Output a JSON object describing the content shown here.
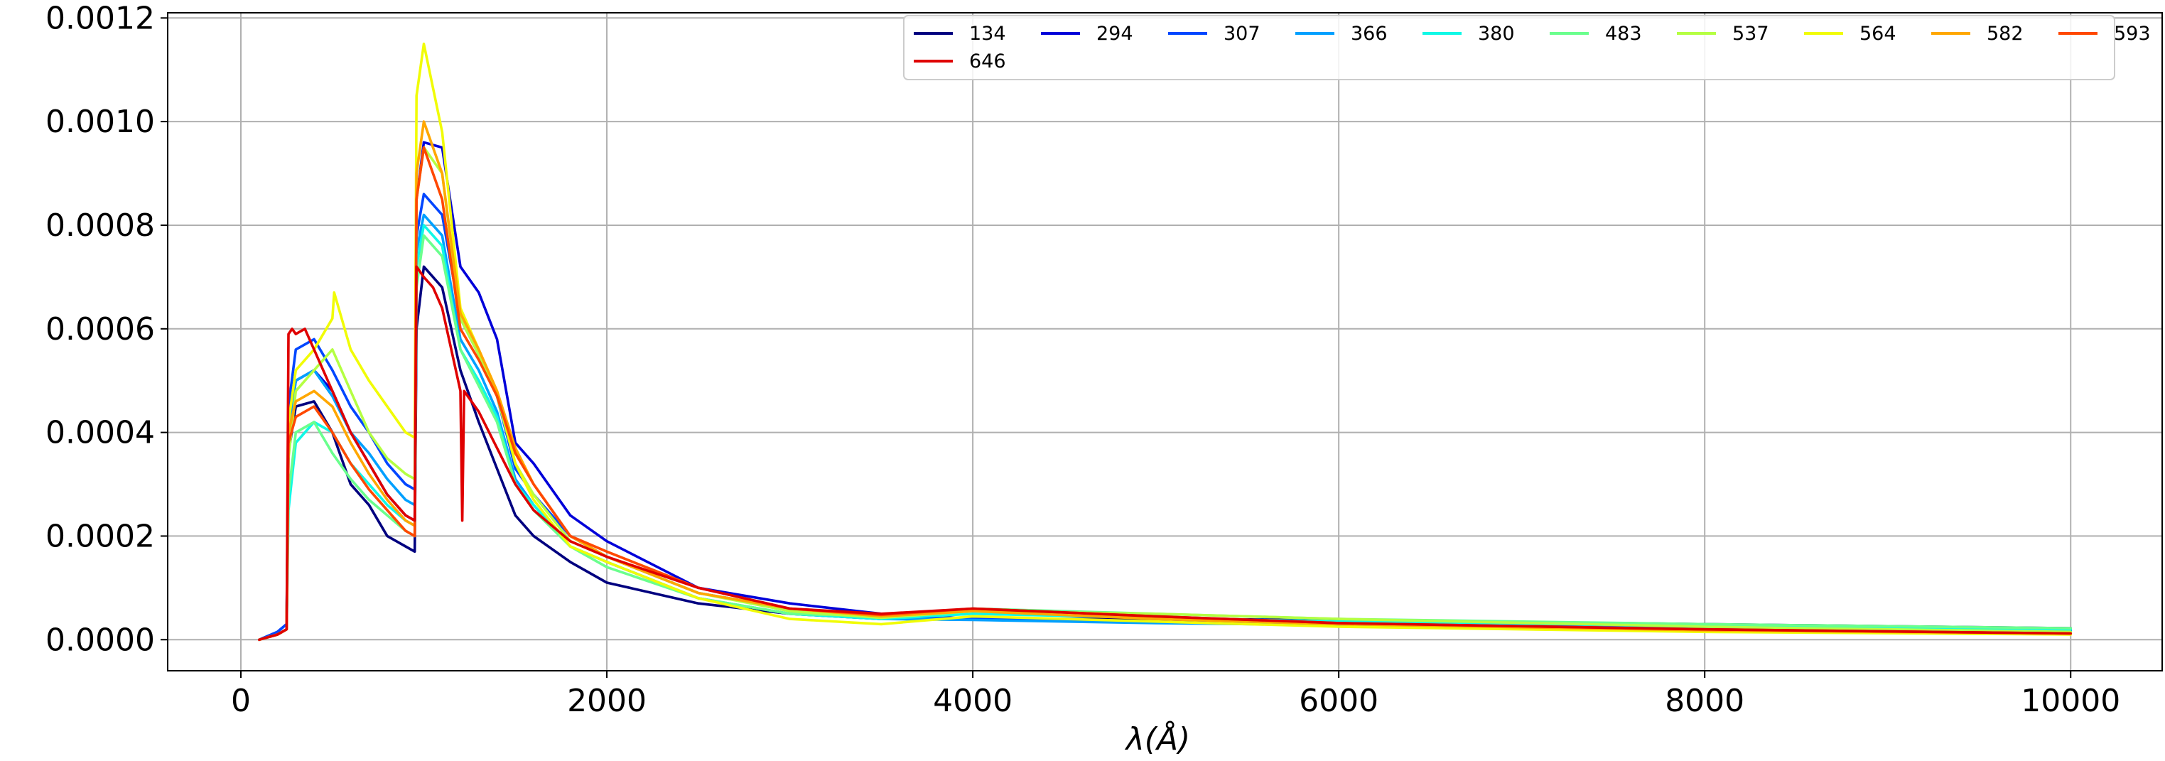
{
  "chart_data": {
    "type": "line",
    "title": "",
    "xlabel": "λ(Å)",
    "ylabel": "",
    "xlim": [
      -400,
      10500
    ],
    "ylim": [
      -6e-05,
      0.00121
    ],
    "x_ticks": [
      0,
      2000,
      4000,
      6000,
      8000,
      10000
    ],
    "x_tick_labels": [
      "0",
      "2000",
      "4000",
      "6000",
      "8000",
      "10000"
    ],
    "y_ticks": [
      0.0,
      0.0002,
      0.0004,
      0.0006,
      0.0008,
      0.001,
      0.0012
    ],
    "y_tick_labels": [
      "0.0000",
      "0.0002",
      "0.0004",
      "0.0006",
      "0.0008",
      "0.0010",
      "0.0012"
    ],
    "grid": true,
    "legend": {
      "placement": "top-right",
      "columns": 10
    },
    "series": [
      {
        "name": "134",
        "color": "#00007f",
        "x": [
          100,
          200,
          250,
          260,
          300,
          400,
          500,
          600,
          700,
          800,
          900,
          950,
          960,
          1000,
          1100,
          1200,
          1300,
          1400,
          1500,
          1600,
          1800,
          2000,
          2500,
          3000,
          3500,
          4000,
          5000,
          6000,
          8000,
          10000
        ],
        "y": [
          0,
          1e-05,
          2e-05,
          0.00036,
          0.00045,
          0.00046,
          0.0004,
          0.0003,
          0.00026,
          0.0002,
          0.00018,
          0.00017,
          0.0006,
          0.00072,
          0.00068,
          0.00052,
          0.00042,
          0.00033,
          0.00024,
          0.0002,
          0.00015,
          0.00011,
          7e-05,
          5e-05,
          4e-05,
          4e-05,
          4e-05,
          3.8e-05,
          3e-05,
          2.2e-05
        ]
      },
      {
        "name": "294",
        "color": "#0000d9",
        "x": [
          100,
          200,
          250,
          260,
          300,
          400,
          500,
          600,
          700,
          800,
          900,
          950,
          960,
          1000,
          1100,
          1200,
          1300,
          1400,
          1500,
          1600,
          1800,
          2000,
          2500,
          3000,
          3500,
          4000,
          5000,
          6000,
          8000,
          10000
        ],
        "y": [
          0,
          1.5e-05,
          3e-05,
          0.0004,
          0.0005,
          0.00052,
          0.00048,
          0.0004,
          0.00034,
          0.00028,
          0.00024,
          0.00023,
          0.00085,
          0.00096,
          0.00095,
          0.00072,
          0.00067,
          0.00058,
          0.00038,
          0.00034,
          0.00024,
          0.00019,
          0.0001,
          7e-05,
          5e-05,
          4e-05,
          3.5e-05,
          3.2e-05,
          2.6e-05,
          1.8e-05
        ]
      },
      {
        "name": "307",
        "color": "#0046ff",
        "x": [
          100,
          200,
          250,
          260,
          300,
          400,
          500,
          600,
          700,
          800,
          900,
          950,
          960,
          1000,
          1100,
          1200,
          1300,
          1400,
          1500,
          1600,
          1800,
          2000,
          2500,
          3000,
          3500,
          4000,
          5000,
          6000,
          8000,
          10000
        ],
        "y": [
          0,
          1.5e-05,
          3e-05,
          0.00045,
          0.00056,
          0.00058,
          0.00052,
          0.00045,
          0.0004,
          0.00034,
          0.0003,
          0.00029,
          0.00078,
          0.00086,
          0.00082,
          0.00062,
          0.00055,
          0.00047,
          0.00033,
          0.00028,
          0.0002,
          0.00016,
          9e-05,
          6e-05,
          4.5e-05,
          4e-05,
          3.4e-05,
          3e-05,
          2.4e-05,
          1.7e-05
        ]
      },
      {
        "name": "366",
        "color": "#00a0ff",
        "x": [
          100,
          200,
          250,
          260,
          300,
          400,
          500,
          600,
          700,
          800,
          900,
          950,
          960,
          1000,
          1100,
          1200,
          1300,
          1400,
          1500,
          1600,
          1800,
          2000,
          2500,
          3000,
          3500,
          4000,
          5000,
          6000,
          8000,
          10000
        ],
        "y": [
          0,
          1e-05,
          2e-05,
          0.0004,
          0.0005,
          0.00052,
          0.00047,
          0.0004,
          0.00036,
          0.00031,
          0.00027,
          0.00026,
          0.00075,
          0.00082,
          0.00078,
          0.00058,
          0.00052,
          0.00044,
          0.00031,
          0.00026,
          0.00018,
          0.00015,
          8e-05,
          5e-05,
          4e-05,
          3.8e-05,
          3.2e-05,
          2.8e-05,
          2.3e-05,
          1.7e-05
        ]
      },
      {
        "name": "380",
        "color": "#10f8e6",
        "x": [
          100,
          200,
          250,
          260,
          300,
          400,
          500,
          600,
          700,
          800,
          900,
          950,
          960,
          1000,
          1100,
          1200,
          1300,
          1400,
          1500,
          1600,
          1800,
          2000,
          2500,
          3000,
          3500,
          4000,
          5000,
          6000,
          8000,
          10000
        ],
        "y": [
          0,
          1e-05,
          2e-05,
          0.00025,
          0.00038,
          0.00042,
          0.0004,
          0.00034,
          0.0003,
          0.00026,
          0.00023,
          0.00022,
          0.00072,
          0.0008,
          0.00076,
          0.00056,
          0.0005,
          0.00043,
          0.0003,
          0.00026,
          0.00018,
          0.00015,
          8e-05,
          5e-05,
          4e-05,
          5e-05,
          4.2e-05,
          3.5e-05,
          2.7e-05,
          2e-05
        ]
      },
      {
        "name": "483",
        "color": "#6aff8d",
        "x": [
          100,
          200,
          250,
          260,
          300,
          400,
          500,
          600,
          700,
          800,
          900,
          950,
          960,
          1000,
          1100,
          1200,
          1300,
          1400,
          1500,
          1600,
          1800,
          2000,
          2500,
          3000,
          3500,
          4000,
          5000,
          6000,
          8000,
          10000
        ],
        "y": [
          0,
          1e-05,
          2e-05,
          0.00028,
          0.0004,
          0.00042,
          0.00036,
          0.00031,
          0.00027,
          0.00024,
          0.00021,
          0.0002,
          0.00068,
          0.00078,
          0.00074,
          0.00056,
          0.00049,
          0.00042,
          0.0003,
          0.00025,
          0.00018,
          0.00014,
          8e-05,
          5e-05,
          4.5e-05,
          6e-05,
          5e-05,
          4e-05,
          3e-05,
          2.2e-05
        ]
      },
      {
        "name": "537",
        "color": "#b5ff42",
        "x": [
          100,
          200,
          250,
          260,
          300,
          400,
          500,
          600,
          700,
          800,
          900,
          950,
          960,
          1000,
          1100,
          1200,
          1300,
          1400,
          1500,
          1600,
          1800,
          2000,
          2500,
          3000,
          3500,
          4000,
          5000,
          6000,
          8000,
          10000
        ],
        "y": [
          0,
          1e-05,
          2e-05,
          0.00035,
          0.00048,
          0.00052,
          0.00056,
          0.00048,
          0.0004,
          0.00035,
          0.00032,
          0.00031,
          0.00085,
          0.00095,
          0.0009,
          0.00062,
          0.00055,
          0.00047,
          0.00034,
          0.00028,
          0.00019,
          0.00016,
          9e-05,
          5.5e-05,
          4.2e-05,
          5.5e-05,
          5e-05,
          4e-05,
          2.5e-05,
          1.5e-05
        ]
      },
      {
        "name": "564",
        "color": "#f1fc06",
        "x": [
          100,
          200,
          250,
          260,
          300,
          400,
          500,
          510,
          600,
          700,
          800,
          900,
          950,
          960,
          1000,
          1100,
          1200,
          1300,
          1400,
          1500,
          1600,
          1800,
          2000,
          2500,
          3000,
          3500,
          4000,
          5000,
          6000,
          8000,
          10000
        ],
        "y": [
          0,
          1e-05,
          2e-05,
          0.00042,
          0.00052,
          0.00056,
          0.00062,
          0.00067,
          0.00056,
          0.0005,
          0.00045,
          0.0004,
          0.00039,
          0.00105,
          0.00115,
          0.00098,
          0.00064,
          0.00056,
          0.00048,
          0.00034,
          0.00027,
          0.00018,
          0.00015,
          8e-05,
          4e-05,
          3e-05,
          4.5e-05,
          3.5e-05,
          2.5e-05,
          1.5e-05,
          1e-05
        ]
      },
      {
        "name": "582",
        "color": "#ffa700",
        "x": [
          100,
          200,
          250,
          260,
          300,
          400,
          500,
          600,
          700,
          800,
          900,
          950,
          960,
          1000,
          1100,
          1200,
          1300,
          1400,
          1500,
          1600,
          1800,
          2000,
          2500,
          3000,
          3500,
          4000,
          5000,
          6000,
          8000,
          10000
        ],
        "y": [
          0,
          1e-05,
          2e-05,
          0.0004,
          0.00046,
          0.00048,
          0.00045,
          0.00038,
          0.00032,
          0.00027,
          0.00023,
          0.00022,
          0.0009,
          0.001,
          0.0009,
          0.00063,
          0.00056,
          0.00048,
          0.00037,
          0.0003,
          0.0002,
          0.00016,
          9e-05,
          6e-05,
          4.5e-05,
          5.5e-05,
          4e-05,
          3e-05,
          1.8e-05,
          1.2e-05
        ]
      },
      {
        "name": "593",
        "color": "#ff4800",
        "x": [
          100,
          200,
          250,
          260,
          300,
          400,
          500,
          600,
          700,
          800,
          900,
          950,
          960,
          1000,
          1100,
          1200,
          1300,
          1400,
          1500,
          1600,
          1800,
          2000,
          2500,
          3000,
          3500,
          4000,
          5000,
          6000,
          8000,
          10000
        ],
        "y": [
          0,
          1e-05,
          2e-05,
          0.00038,
          0.00043,
          0.00045,
          0.0004,
          0.00034,
          0.00029,
          0.00025,
          0.00021,
          0.0002,
          0.00085,
          0.00095,
          0.00085,
          0.0006,
          0.00054,
          0.00047,
          0.00036,
          0.0003,
          0.0002,
          0.00017,
          0.0001,
          6e-05,
          4.8e-05,
          6e-05,
          4.5e-05,
          3.2e-05,
          2e-05,
          1.2e-05
        ]
      },
      {
        "name": "646",
        "color": "#df0000",
        "x": [
          100,
          200,
          250,
          260,
          280,
          300,
          350,
          400,
          500,
          600,
          700,
          800,
          900,
          950,
          960,
          1000,
          1050,
          1100,
          1200,
          1210,
          1220,
          1300,
          1400,
          1500,
          1600,
          1800,
          2000,
          2500,
          3000,
          3500,
          4000,
          5000,
          6000,
          8000,
          10000
        ],
        "y": [
          0,
          1e-05,
          2e-05,
          0.00059,
          0.0006,
          0.00059,
          0.0006,
          0.00056,
          0.00048,
          0.0004,
          0.00034,
          0.00028,
          0.00024,
          0.00023,
          0.00072,
          0.0007,
          0.00068,
          0.00064,
          0.00048,
          0.00023,
          0.00048,
          0.00044,
          0.00037,
          0.0003,
          0.00025,
          0.00019,
          0.00016,
          0.0001,
          6e-05,
          5e-05,
          6e-05,
          4.5e-05,
          3.2e-05,
          2e-05,
          1.2e-05
        ]
      }
    ]
  }
}
